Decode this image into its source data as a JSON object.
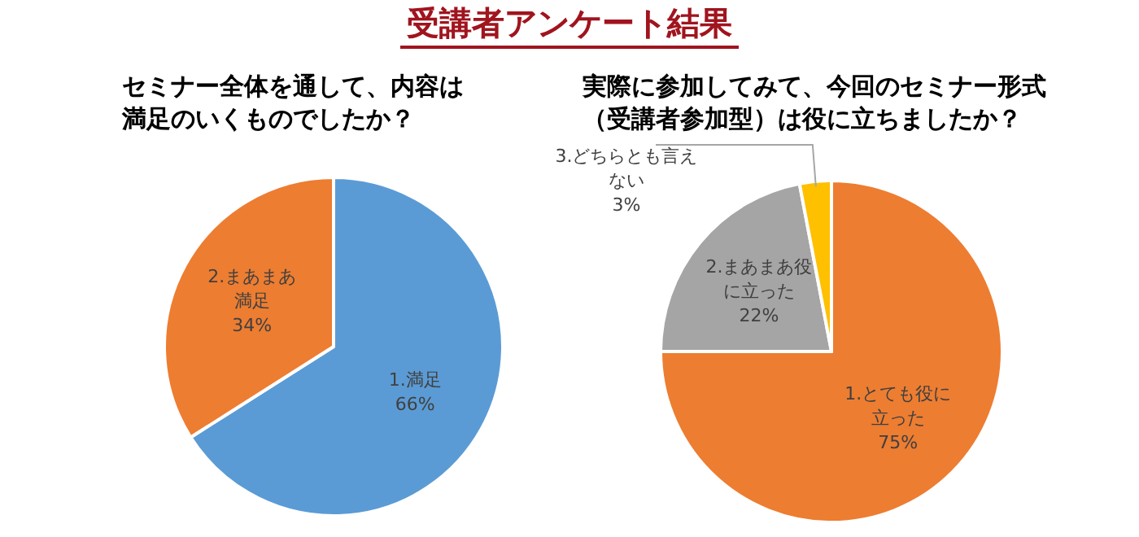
{
  "chart_data": [
    {
      "type": "pie",
      "title": "受講者アンケート結果",
      "subtitle": "セミナー全体を通して、内容は満足のいくものでしたか？",
      "categories": [
        "1.満足",
        "2.まあまあ満足"
      ],
      "values": [
        66,
        34
      ],
      "value_labels": [
        "66%",
        "34%"
      ],
      "colors": [
        "#5b9bd5",
        "#ed7d31"
      ]
    },
    {
      "type": "pie",
      "subtitle": "実際に参加してみて、今回のセミナー形式（受講者参加型）は役に立ちましたか？",
      "categories": [
        "1.とても役に立った",
        "2.まあまあ役に立った",
        "3.どちらとも言えない"
      ],
      "values": [
        75,
        22,
        3
      ],
      "value_labels": [
        "75%",
        "22%",
        "3%"
      ],
      "colors": [
        "#ed7d31",
        "#a5a5a5",
        "#ffc000"
      ]
    }
  ]
}
